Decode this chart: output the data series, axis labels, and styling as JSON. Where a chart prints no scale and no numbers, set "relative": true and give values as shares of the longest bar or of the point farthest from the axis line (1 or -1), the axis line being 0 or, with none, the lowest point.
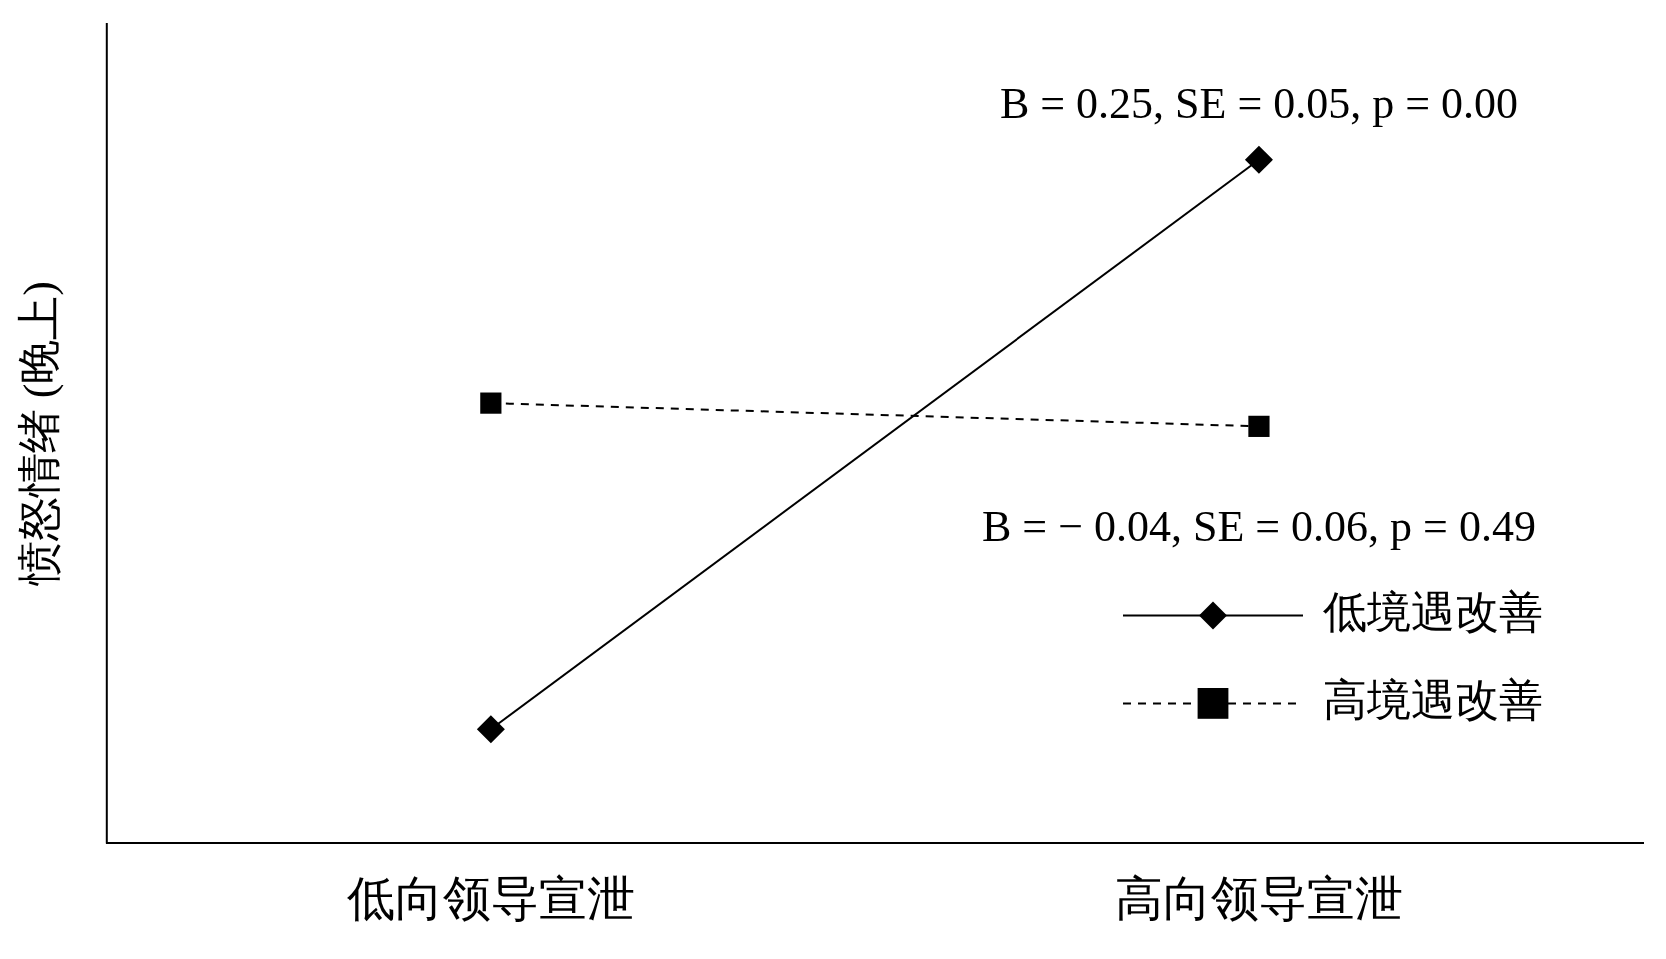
{
  "chart_data": {
    "type": "line",
    "ylabel": "愤怒情绪 (晚上)",
    "categories": [
      "低向领导宣泄",
      "高向领导宣泄"
    ],
    "relative": true,
    "legend": "bottom right",
    "grid": false,
    "series": [
      {
        "name": "低境遇改善",
        "color": "#000000",
        "values": [
          0.167,
          1
        ],
        "marker": "diamond",
        "line_style": "solid"
      },
      {
        "name": "高境遇改善",
        "color": "#000000",
        "values": [
          0.644,
          0.61
        ],
        "marker": "square",
        "line_style": "dashed"
      }
    ],
    "annotations": [
      "B = 0.25, SE = 0.05, p = 0.00",
      "B = − 0.04, SE = 0.06, p = 0.49"
    ]
  }
}
